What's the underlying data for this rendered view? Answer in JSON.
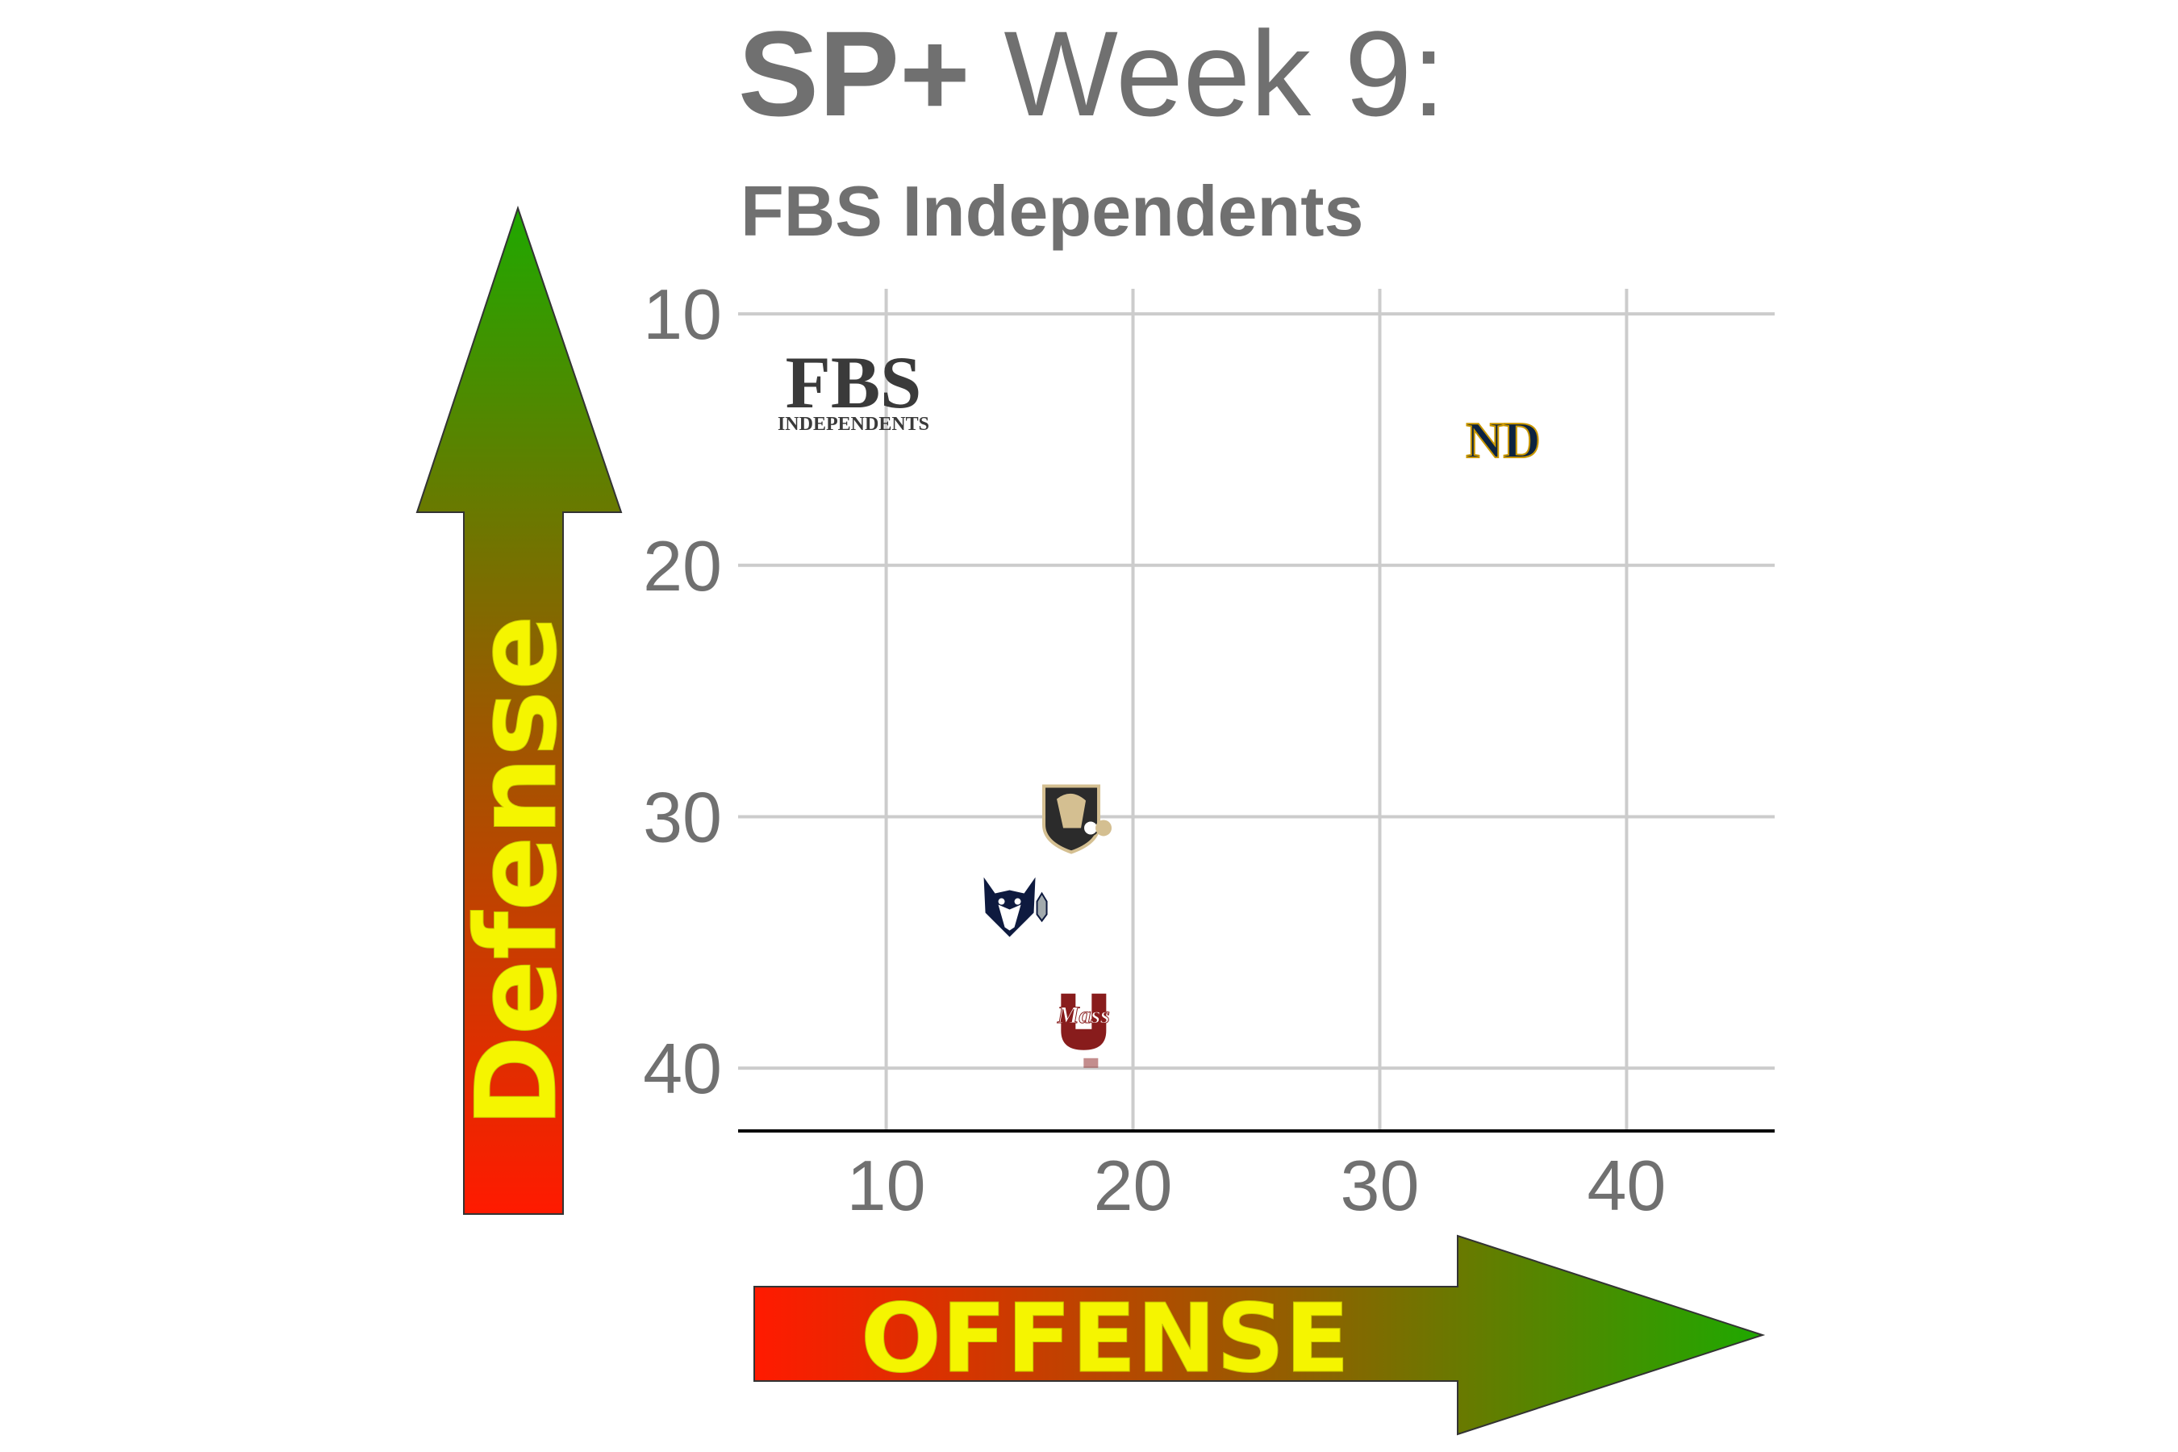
{
  "title": {
    "bold": "SP+",
    "rest": " Week 9:"
  },
  "subtitle": "FBS Independents",
  "arrows": {
    "y_label": "Defense",
    "x_label": "OFFENSE"
  },
  "conference_logo": {
    "line1": "FBS",
    "line2": "INDEPENDENTS"
  },
  "colors": {
    "text": "#707070",
    "grid": "#cccccc",
    "arrow_start": "#ff1a00",
    "arrow_end": "#1fa800",
    "arrow_text": "#f5f500"
  },
  "chart_data": {
    "type": "scatter",
    "title": "SP+ Week 9:",
    "subtitle": "FBS Independents",
    "xlabel": "OFFENSE",
    "ylabel": "Defense",
    "xlim": [
      4,
      46
    ],
    "ylim": [
      42.5,
      9
    ],
    "y_reversed": true,
    "xticks": [
      10,
      20,
      30,
      40
    ],
    "yticks": [
      10,
      20,
      30,
      40
    ],
    "grid": true,
    "points": [
      {
        "team": "Notre Dame",
        "icon": "nd-logo",
        "x": 35,
        "y": 15,
        "color": "#0c2340",
        "accent": "#c99700"
      },
      {
        "team": "Army",
        "icon": "army-logo",
        "x": 17.5,
        "y": 30,
        "color": "#2b2b2b",
        "accent": "#d4bf91"
      },
      {
        "team": "UConn",
        "icon": "uconn-logo",
        "x": 15,
        "y": 33.5,
        "color": "#0e1a3f",
        "accent": "#a2aaad"
      },
      {
        "team": "UMass",
        "icon": "umass-logo",
        "x": 18,
        "y": 38,
        "color": "#881c1c",
        "accent": "#ffffff"
      }
    ]
  }
}
